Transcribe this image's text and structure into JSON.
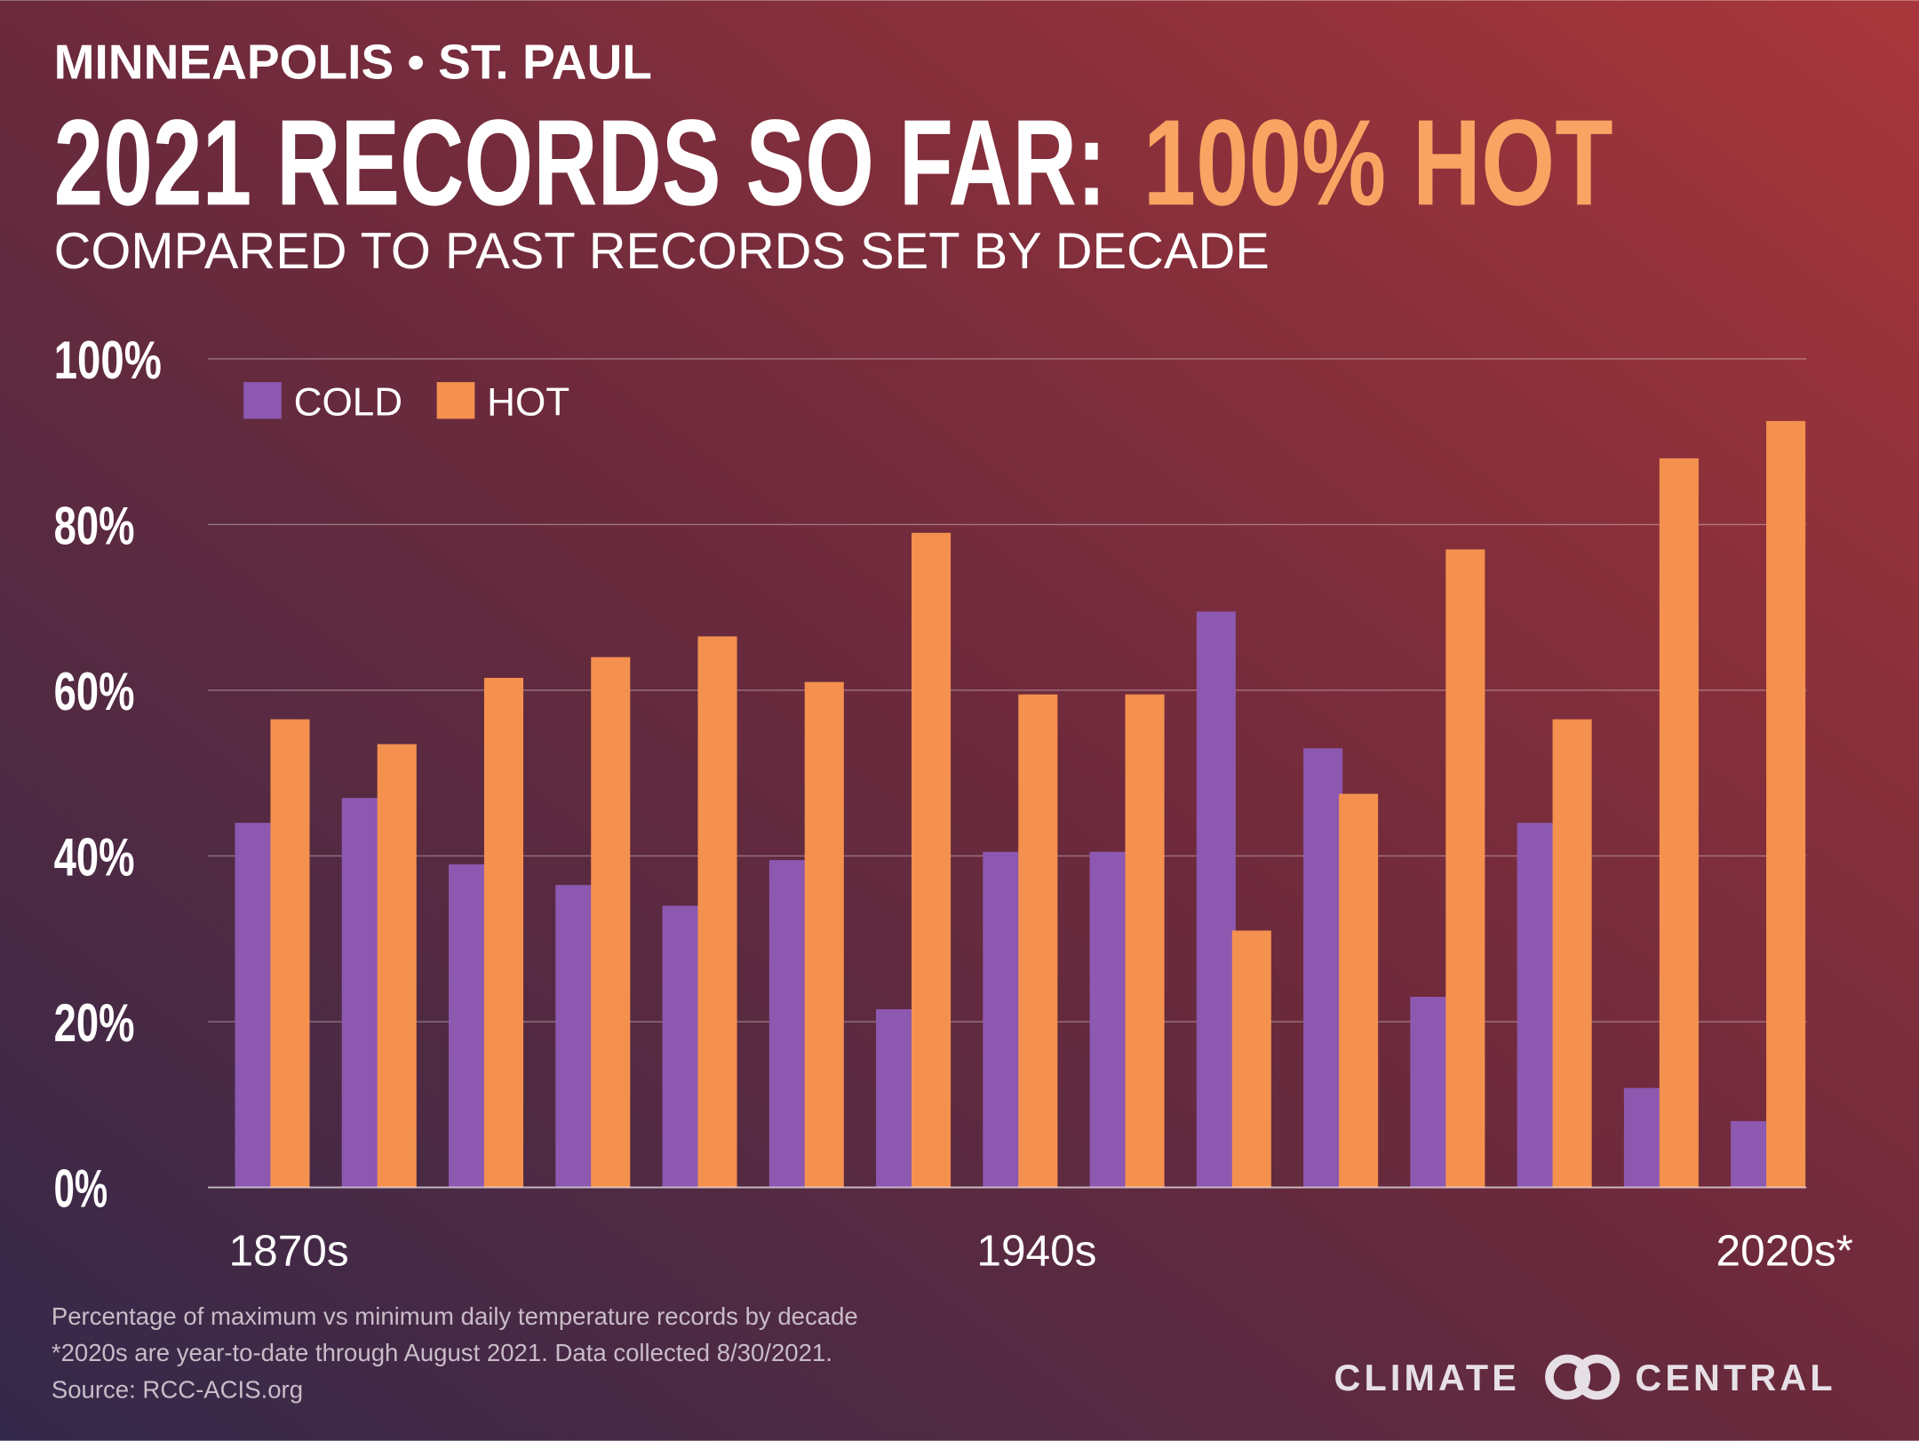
{
  "header": {
    "location": "MINNEAPOLIS • ST. PAUL",
    "title": "2021 RECORDS SO FAR:",
    "title_highlight": "100% HOT",
    "subtitle": "COMPARED TO PAST RECORDS SET BY DECADE"
  },
  "chart_data": {
    "type": "bar",
    "categories": [
      "1870s",
      null,
      null,
      null,
      null,
      null,
      null,
      "1940s",
      null,
      null,
      null,
      null,
      null,
      null,
      "2020s*"
    ],
    "series": [
      {
        "name": "COLD",
        "color": "#8d58b0",
        "values": [
          44,
          47,
          39,
          36.5,
          34,
          39.5,
          21.5,
          40.5,
          40.5,
          69.5,
          53,
          23,
          44,
          12,
          8
        ]
      },
      {
        "name": "HOT",
        "color": "#f4914f",
        "values": [
          56.5,
          53.5,
          61.5,
          64,
          66.5,
          61,
          79,
          59.5,
          59.5,
          31,
          47.5,
          77,
          56.5,
          88,
          92.5
        ]
      }
    ],
    "ylim": [
      0,
      100
    ],
    "yticks": [
      {
        "value": 0,
        "label": "0%"
      },
      {
        "value": 20,
        "label": "20%"
      },
      {
        "value": 40,
        "label": "40%"
      },
      {
        "value": 60,
        "label": "60%"
      },
      {
        "value": 80,
        "label": "80%"
      },
      {
        "value": 100,
        "label": "100%"
      }
    ],
    "grid": true,
    "legend": "top-left"
  },
  "footer": {
    "notes": [
      "Percentage of maximum vs minimum daily temperature records by decade",
      "*2020s are year-to-date through August 2021. Data collected 8/30/2021.",
      "Source: RCC-ACIS.org"
    ],
    "logo_left": "CLIMATE",
    "logo_right": "CENTRAL"
  }
}
